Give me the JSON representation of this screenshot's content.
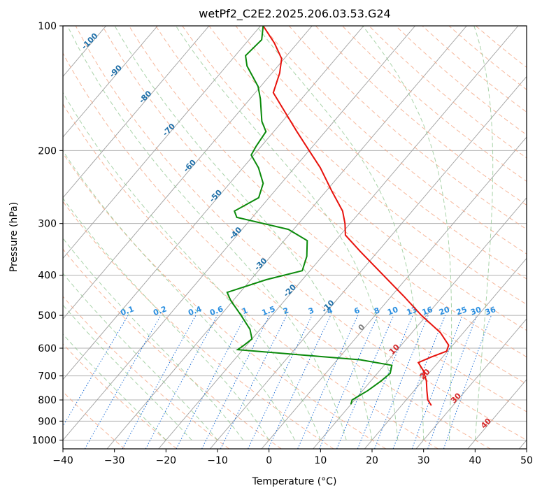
{
  "chart_data": {
    "type": "line",
    "title": "wetPf2_C2E2.2025.206.03.53.G24",
    "xlabel": "Temperature (°C)",
    "ylabel": "Pressure (hPa)",
    "xlim": [
      -40,
      50
    ],
    "ylim": [
      1050,
      100
    ],
    "y_scale": "log",
    "grid": true,
    "x_ticks": [
      -40,
      -30,
      -20,
      -10,
      0,
      10,
      20,
      30,
      40,
      50
    ],
    "y_ticks": [
      100,
      200,
      300,
      400,
      500,
      600,
      700,
      800,
      900,
      1000
    ],
    "skew": true,
    "series": [
      {
        "role": "temperature",
        "color": "#e8120c",
        "points": [
          {
            "p": 825,
            "t": 25.8
          },
          {
            "p": 800,
            "t": 24.2
          },
          {
            "p": 760,
            "t": 22.5
          },
          {
            "p": 720,
            "t": 20.8
          },
          {
            "p": 680,
            "t": 18.5
          },
          {
            "p": 650,
            "t": 16.2
          },
          {
            "p": 630,
            "t": 17.8
          },
          {
            "p": 610,
            "t": 19.8
          },
          {
            "p": 590,
            "t": 19.2
          },
          {
            "p": 550,
            "t": 15.5
          },
          {
            "p": 500,
            "t": 9.0
          },
          {
            "p": 450,
            "t": 2.5
          },
          {
            "p": 400,
            "t": -5.0
          },
          {
            "p": 350,
            "t": -13.5
          },
          {
            "p": 320,
            "t": -19.0
          },
          {
            "p": 300,
            "t": -21.0
          },
          {
            "p": 280,
            "t": -23.5
          },
          {
            "p": 250,
            "t": -29.0
          },
          {
            "p": 220,
            "t": -35.0
          },
          {
            "p": 200,
            "t": -40.0
          },
          {
            "p": 180,
            "t": -45.5
          },
          {
            "p": 160,
            "t": -51.5
          },
          {
            "p": 145,
            "t": -56.5
          },
          {
            "p": 130,
            "t": -58.5
          },
          {
            "p": 120,
            "t": -60.5
          },
          {
            "p": 110,
            "t": -64.5
          },
          {
            "p": 100,
            "t": -69.5
          }
        ]
      },
      {
        "role": "dewpoint",
        "color": "#0b8a0b",
        "points": [
          {
            "p": 820,
            "t": 10.0
          },
          {
            "p": 800,
            "t": 9.5
          },
          {
            "p": 760,
            "t": 11.0
          },
          {
            "p": 720,
            "t": 12.0
          },
          {
            "p": 690,
            "t": 12.5
          },
          {
            "p": 660,
            "t": 11.5
          },
          {
            "p": 640,
            "t": 4.5
          },
          {
            "p": 620,
            "t": -10.0
          },
          {
            "p": 605,
            "t": -21.0
          },
          {
            "p": 590,
            "t": -20.5
          },
          {
            "p": 570,
            "t": -20.0
          },
          {
            "p": 540,
            "t": -22.0
          },
          {
            "p": 500,
            "t": -26.0
          },
          {
            "p": 460,
            "t": -30.5
          },
          {
            "p": 440,
            "t": -32.5
          },
          {
            "p": 410,
            "t": -27.0
          },
          {
            "p": 390,
            "t": -21.5
          },
          {
            "p": 360,
            "t": -23.0
          },
          {
            "p": 330,
            "t": -25.5
          },
          {
            "p": 310,
            "t": -31.0
          },
          {
            "p": 290,
            "t": -43.0
          },
          {
            "p": 280,
            "t": -44.5
          },
          {
            "p": 260,
            "t": -42.0
          },
          {
            "p": 240,
            "t": -43.5
          },
          {
            "p": 220,
            "t": -47.0
          },
          {
            "p": 205,
            "t": -50.5
          },
          {
            "p": 195,
            "t": -51.0
          },
          {
            "p": 180,
            "t": -51.5
          },
          {
            "p": 170,
            "t": -54.0
          },
          {
            "p": 150,
            "t": -58.0
          },
          {
            "p": 140,
            "t": -60.5
          },
          {
            "p": 125,
            "t": -66.0
          },
          {
            "p": 118,
            "t": -68.0
          },
          {
            "p": 108,
            "t": -67.5
          },
          {
            "p": 100,
            "t": -69.5
          }
        ]
      }
    ],
    "isotherm_labels": [
      "-100",
      "-90",
      "-80",
      "-70",
      "-60",
      "-50",
      "-40",
      "-30",
      "-20",
      "-10",
      "0",
      "10",
      "20",
      "30",
      "40"
    ],
    "mixing_ratio_labels": [
      "0.1",
      "0.2",
      "0.4",
      "0.6",
      "1",
      "1.5",
      "2",
      "3",
      "4",
      "6",
      "8",
      "10",
      "13",
      "16",
      "20",
      "25",
      "30",
      "36"
    ],
    "colors": {
      "isotherm": "#a0a0a0",
      "dry_adiabat": "#f4a582",
      "moist_adiabat": "#8cc48c",
      "mixing_ratio": "#1f6fd6",
      "isotherm_label_blue": "#1f6fa8",
      "isotherm_label_red": "#d62728",
      "mixing_label": "#2b8fe0"
    }
  }
}
